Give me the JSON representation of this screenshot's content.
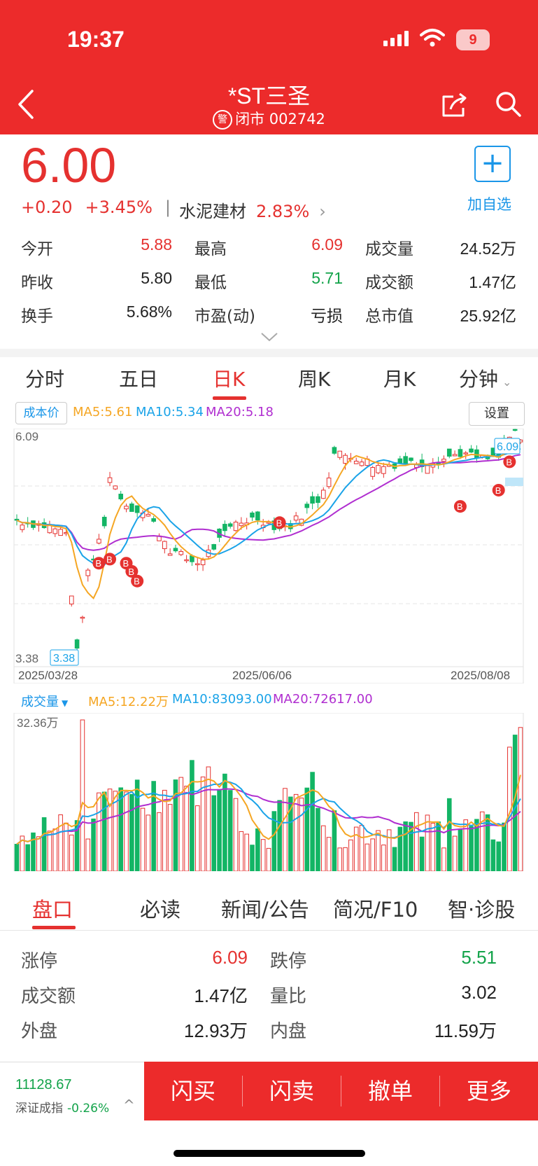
{
  "status_bar": {
    "time": "19:37",
    "battery": "9"
  },
  "header": {
    "title": "*ST三圣",
    "warn_badge": "警",
    "status": "闭市 002742"
  },
  "quote": {
    "price": "6.00",
    "change": "+0.20",
    "change_pct": "+3.45%",
    "separator": "|",
    "sector": "水泥建材",
    "sector_pct": "2.83%",
    "add_label": "加自选",
    "fields": [
      {
        "label": "今开",
        "value": "5.88"
      },
      {
        "label": "最高",
        "value": "6.09"
      },
      {
        "label": "成交量",
        "value": "24.52万"
      },
      {
        "label": "昨收",
        "value": "5.80"
      },
      {
        "label": "最低",
        "value": "5.71"
      },
      {
        "label": "成交额",
        "value": "1.47亿"
      },
      {
        "label": "换手",
        "value": "5.68%"
      },
      {
        "label": "市盈(动)",
        "value": "亏损"
      },
      {
        "label": "总市值",
        "value": "25.92亿"
      }
    ]
  },
  "chart_tabs": [
    "分时",
    "五日",
    "日K",
    "周K",
    "月K",
    "分钟"
  ],
  "kline": {
    "cost_button": "成本价",
    "ma5": "MA5:5.61",
    "ma10": "MA10:5.34",
    "ma20": "MA20:5.18",
    "settings": "设置",
    "max_label": "6.09",
    "min_label": "3.38",
    "max_tag": "6.09",
    "min_tag": "3.38",
    "dates": [
      "2025/03/28",
      "2025/06/06",
      "2025/08/08"
    ],
    "buy_marker": "B",
    "colors": {
      "up": "#e5312f",
      "down": "#13b565",
      "ma5": "#f5a623",
      "ma10": "#1aa3e8",
      "ma20": "#b02ed0"
    }
  },
  "volume": {
    "label": "成交量",
    "ma5": "MA5:12.22万",
    "ma10": "MA10:83093.00",
    "ma20": "MA20:72617.00",
    "max_label": "32.36万"
  },
  "chart_data": {
    "type": "candlestick",
    "price_range": [
      3.38,
      6.09
    ],
    "x_range": [
      "2025/03/28",
      "2025/08/08"
    ],
    "last_close": 6.0,
    "volume_max": "32.36万",
    "ma": {
      "MA5": 5.61,
      "MA10": 5.34,
      "MA20": 5.18
    }
  },
  "info_tabs": [
    "盘口",
    "必读",
    "新闻/公告",
    "简况/F10",
    "智·诊股"
  ],
  "pankou": [
    {
      "label": "涨停",
      "value": "6.09"
    },
    {
      "label": "跌停",
      "value": "5.51"
    },
    {
      "label": "成交额",
      "value": "1.47亿"
    },
    {
      "label": "量比",
      "value": "3.02"
    },
    {
      "label": "外盘",
      "value": "12.93万"
    },
    {
      "label": "内盘",
      "value": "11.59万"
    }
  ],
  "index": {
    "value": "11128.67",
    "name": "深证成指",
    "pct": "-0.26%"
  },
  "actions": [
    "闪买",
    "闪卖",
    "撤单",
    "更多"
  ]
}
